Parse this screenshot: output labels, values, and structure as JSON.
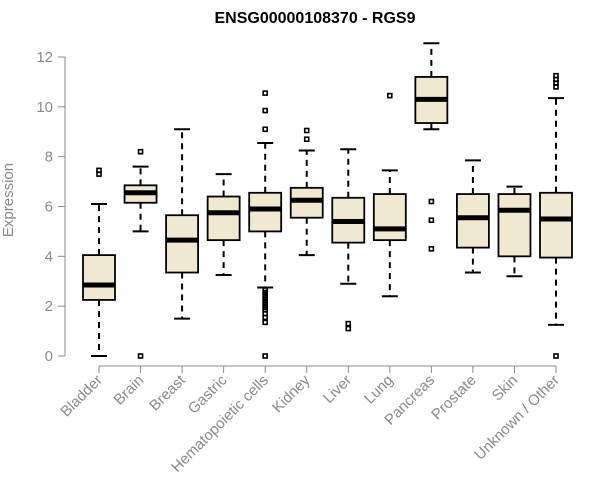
{
  "chart_data": {
    "type": "boxplot",
    "title": "ENSG00000108370 - RGS9",
    "ylabel": "Expression",
    "xlabel": "",
    "ylim": [
      0,
      12.6
    ],
    "yticks": [
      0,
      2,
      4,
      6,
      8,
      10,
      12
    ],
    "grid": false,
    "categories": [
      "Bladder",
      "Brain",
      "Breast",
      "Gastric",
      "Hematopoietic cells",
      "Kidney",
      "Liver",
      "Lung",
      "Pancreas",
      "Prostate",
      "Skin",
      "Unknown / Other"
    ],
    "boxes": [
      {
        "category": "Bladder",
        "whisker_low": 0.0,
        "q1": 2.25,
        "median": 2.85,
        "q3": 4.05,
        "whisker_high": 6.1,
        "outliers": [
          7.3,
          7.45
        ]
      },
      {
        "category": "Brain",
        "whisker_low": 5.0,
        "q1": 6.15,
        "median": 6.55,
        "q3": 6.85,
        "whisker_high": 7.6,
        "outliers": [
          0.0,
          8.2
        ]
      },
      {
        "category": "Breast",
        "whisker_low": 1.5,
        "q1": 3.35,
        "median": 4.65,
        "q3": 5.65,
        "whisker_high": 9.1,
        "outliers": []
      },
      {
        "category": "Gastric",
        "whisker_low": 3.25,
        "q1": 4.65,
        "median": 5.75,
        "q3": 6.4,
        "whisker_high": 7.3,
        "outliers": []
      },
      {
        "category": "Hematopoietic cells",
        "whisker_low": 2.75,
        "q1": 5.0,
        "median": 5.9,
        "q3": 6.55,
        "whisker_high": 8.55,
        "outliers": [
          0.0,
          1.35,
          1.55,
          1.7,
          1.85,
          1.95,
          2.05,
          2.15,
          2.25,
          2.35,
          2.45,
          2.55,
          2.65,
          9.1,
          9.85,
          10.55
        ]
      },
      {
        "category": "Kidney",
        "whisker_low": 4.05,
        "q1": 5.55,
        "median": 6.25,
        "q3": 6.75,
        "whisker_high": 8.25,
        "outliers": [
          8.7,
          9.05
        ]
      },
      {
        "category": "Liver",
        "whisker_low": 2.9,
        "q1": 4.55,
        "median": 5.4,
        "q3": 6.35,
        "whisker_high": 8.3,
        "outliers": [
          1.1,
          1.3
        ]
      },
      {
        "category": "Lung",
        "whisker_low": 2.4,
        "q1": 4.65,
        "median": 5.1,
        "q3": 6.5,
        "whisker_high": 7.45,
        "outliers": [
          10.45
        ]
      },
      {
        "category": "Pancreas",
        "whisker_low": 9.1,
        "q1": 9.35,
        "median": 10.3,
        "q3": 11.2,
        "whisker_high": 12.55,
        "outliers": [
          4.3,
          5.45,
          6.2
        ]
      },
      {
        "category": "Prostate",
        "whisker_low": 3.35,
        "q1": 4.35,
        "median": 5.55,
        "q3": 6.5,
        "whisker_high": 7.85,
        "outliers": []
      },
      {
        "category": "Skin",
        "whisker_low": 3.2,
        "q1": 4.0,
        "median": 5.85,
        "q3": 6.5,
        "whisker_high": 6.8,
        "outliers": []
      },
      {
        "category": "Unknown / Other",
        "whisker_low": 1.25,
        "q1": 3.95,
        "median": 5.5,
        "q3": 6.55,
        "whisker_high": 10.35,
        "outliers": [
          0.0,
          10.8,
          10.95,
          11.1,
          11.25
        ]
      }
    ],
    "colors": {
      "box_fill": "#f0e8d0",
      "stroke": "#000000",
      "axis": "#8a8a8a"
    }
  }
}
